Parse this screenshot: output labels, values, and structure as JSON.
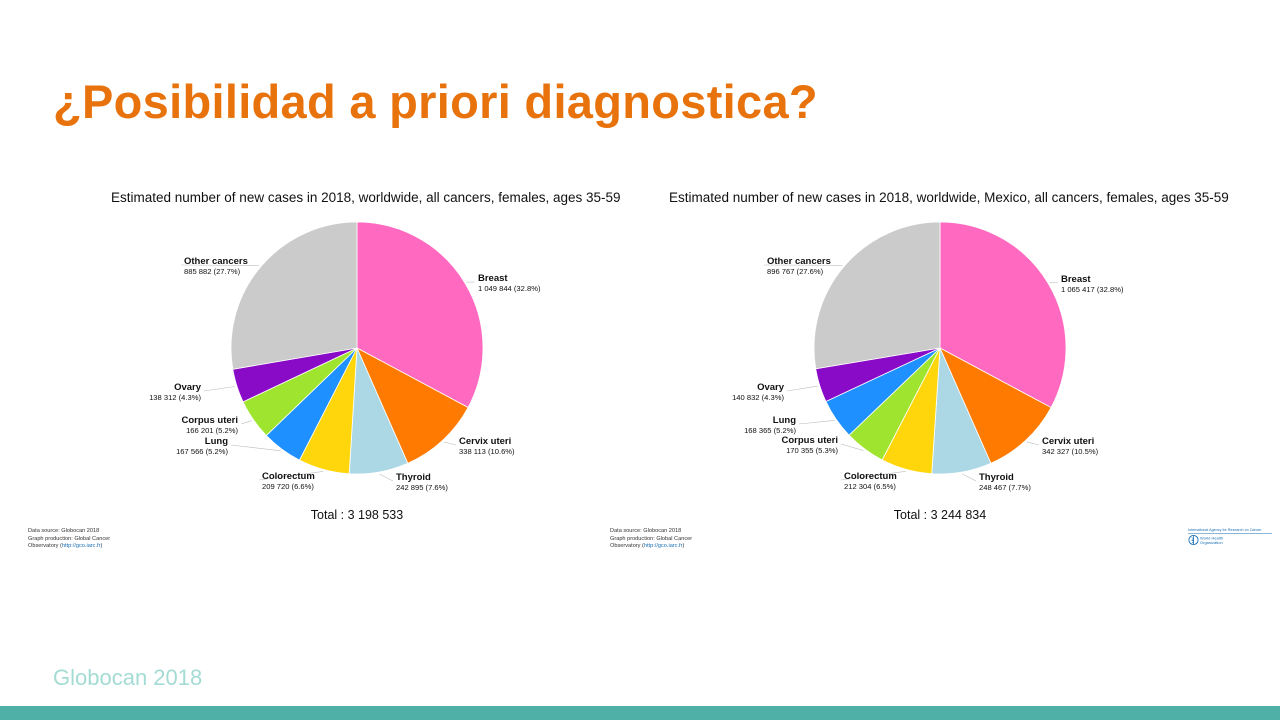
{
  "slide": {
    "title": "¿Posibilidad a priori diagnostica?",
    "footer": "Globocan 2018",
    "colors": {
      "title": "#e8730c",
      "footer": "#a4dcd4",
      "bar": "#4eb0a6"
    }
  },
  "credits": {
    "line1": "Data source: Globocan 2018",
    "line2": "Graph production: Global Cancer",
    "line3_prefix": "Observatory (",
    "line3_link": "http://gco.iarc.fr",
    "line3_suffix": ")"
  },
  "who_logo": {
    "iarc_text": "International Agency for Research on Cancer",
    "who_line1": "World Health",
    "who_line2": "Organization",
    "icon": "who-emblem-icon"
  },
  "chart_data": [
    {
      "type": "pie",
      "title": "Estimated number of new cases in 2018, worldwide, all cancers, females, ages 35-59",
      "total_label": "Total : 3 198 533",
      "total": 3198533,
      "slices": [
        {
          "label": "Breast",
          "value": 1049844,
          "value_text": "1 049 844 (32.8%)",
          "color": "#ff69c0"
        },
        {
          "label": "Cervix uteri",
          "value": 338113,
          "value_text": "338 113 (10.6%)",
          "color": "#ff7a00"
        },
        {
          "label": "Thyroid",
          "value": 242895,
          "value_text": "242 895 (7.6%)",
          "color": "#acd8e6"
        },
        {
          "label": "Colorectum",
          "value": 209720,
          "value_text": "209 720 (6.6%)",
          "color": "#ffd60c"
        },
        {
          "label": "Lung",
          "value": 167566,
          "value_text": "167 566 (5.2%)",
          "color": "#1e90ff"
        },
        {
          "label": "Corpus uteri",
          "value": 166201,
          "value_text": "166 201 (5.2%)",
          "color": "#9fe52f"
        },
        {
          "label": "Ovary",
          "value": 138312,
          "value_text": "138 312 (4.3%)",
          "color": "#8a0bc7"
        },
        {
          "label": "Other cancers",
          "value": 885882,
          "value_text": "885 882 (27.7%)",
          "color": "#cbcbcb"
        }
      ]
    },
    {
      "type": "pie",
      "title": "Estimated number of new cases in 2018, worldwide, Mexico, all cancers, females, ages 35-59",
      "total_label": "Total : 3 244 834",
      "total": 3244834,
      "slices": [
        {
          "label": "Breast",
          "value": 1065417,
          "value_text": "1 065 417 (32.8%)",
          "color": "#ff69c0"
        },
        {
          "label": "Cervix uteri",
          "value": 342327,
          "value_text": "342 327 (10.5%)",
          "color": "#ff7a00"
        },
        {
          "label": "Thyroid",
          "value": 248467,
          "value_text": "248 467 (7.7%)",
          "color": "#acd8e6"
        },
        {
          "label": "Colorectum",
          "value": 212304,
          "value_text": "212 304 (6.5%)",
          "color": "#ffd60c"
        },
        {
          "label": "Corpus uteri",
          "value": 170355,
          "value_text": "170 355 (5.3%)",
          "color": "#9fe52f"
        },
        {
          "label": "Lung",
          "value": 168365,
          "value_text": "168 365 (5.2%)",
          "color": "#1e90ff"
        },
        {
          "label": "Ovary",
          "value": 140832,
          "value_text": "140 832 (4.3%)",
          "color": "#8a0bc7"
        },
        {
          "label": "Other cancers",
          "value": 896767,
          "value_text": "896 767 (27.6%)",
          "color": "#cbcbcb"
        }
      ]
    }
  ]
}
